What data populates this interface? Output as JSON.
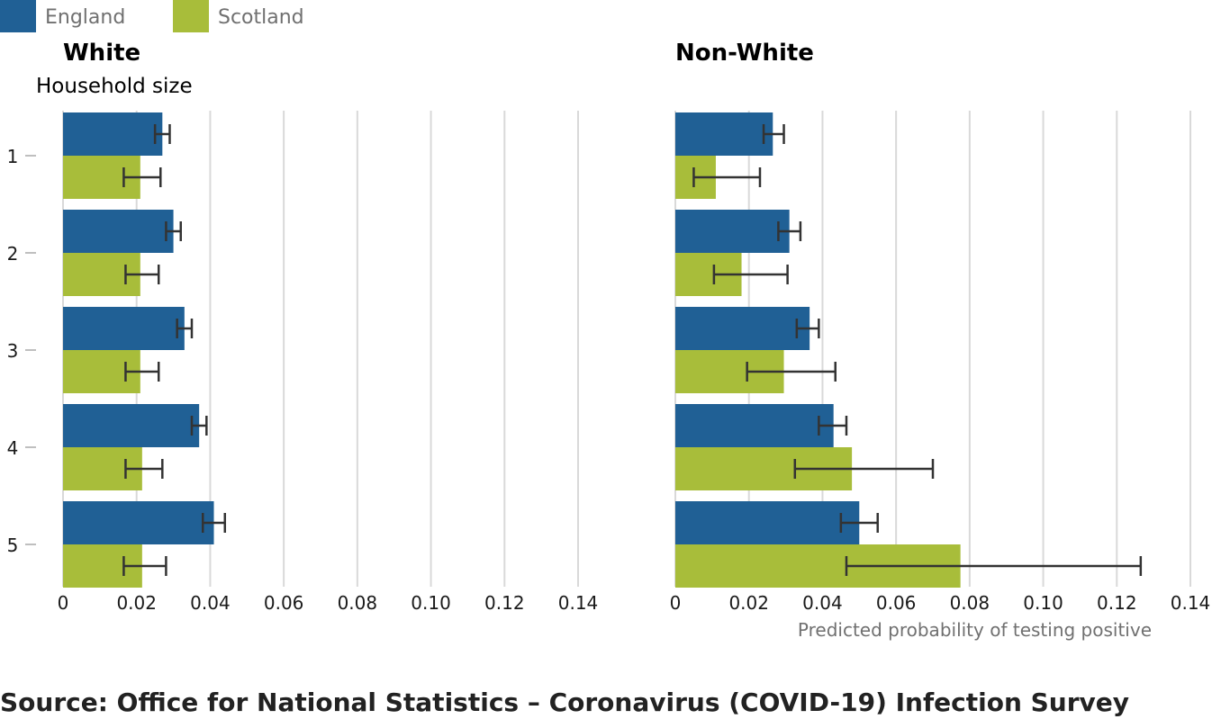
{
  "chart_data": {
    "type": "bar",
    "orientation": "horizontal",
    "legend": {
      "placement": "top-left",
      "entries": [
        {
          "name": "England",
          "color": "#206095"
        },
        {
          "name": "Scotland",
          "color": "#a8bd3a"
        }
      ]
    },
    "ylabel": "Household size",
    "xlabel": "Predicted probability of testing positive",
    "categories": [
      "1",
      "2",
      "3",
      "4",
      "5"
    ],
    "xlim": [
      0,
      0.14
    ],
    "xticks": [
      "0",
      "0.02",
      "0.04",
      "0.06",
      "0.08",
      "0.10",
      "0.12",
      "0.14"
    ],
    "grid": "vertical",
    "panels": [
      {
        "title": "White",
        "series": [
          {
            "name": "England",
            "values": [
              0.027,
              0.03,
              0.033,
              0.037,
              0.041
            ],
            "lower": [
              0.025,
              0.028,
              0.031,
              0.035,
              0.038
            ],
            "upper": [
              0.029,
              0.032,
              0.035,
              0.039,
              0.044
            ]
          },
          {
            "name": "Scotland",
            "values": [
              0.021,
              0.021,
              0.021,
              0.0215,
              0.0215
            ],
            "lower": [
              0.0165,
              0.017,
              0.017,
              0.017,
              0.0165
            ],
            "upper": [
              0.0265,
              0.026,
              0.026,
              0.027,
              0.028
            ]
          }
        ]
      },
      {
        "title": "Non-White",
        "series": [
          {
            "name": "England",
            "values": [
              0.0265,
              0.031,
              0.0365,
              0.043,
              0.05
            ],
            "lower": [
              0.024,
              0.028,
              0.033,
              0.039,
              0.045
            ],
            "upper": [
              0.0295,
              0.034,
              0.039,
              0.0465,
              0.055
            ]
          },
          {
            "name": "Scotland",
            "values": [
              0.011,
              0.018,
              0.0295,
              0.048,
              0.0775
            ],
            "lower": [
              0.005,
              0.0105,
              0.0195,
              0.0325,
              0.0465
            ],
            "upper": [
              0.023,
              0.0305,
              0.0435,
              0.07,
              0.1265
            ]
          }
        ]
      }
    ]
  },
  "source": "Source: Office for National Statistics – Coronavirus (COVID-19) Infection Survey"
}
